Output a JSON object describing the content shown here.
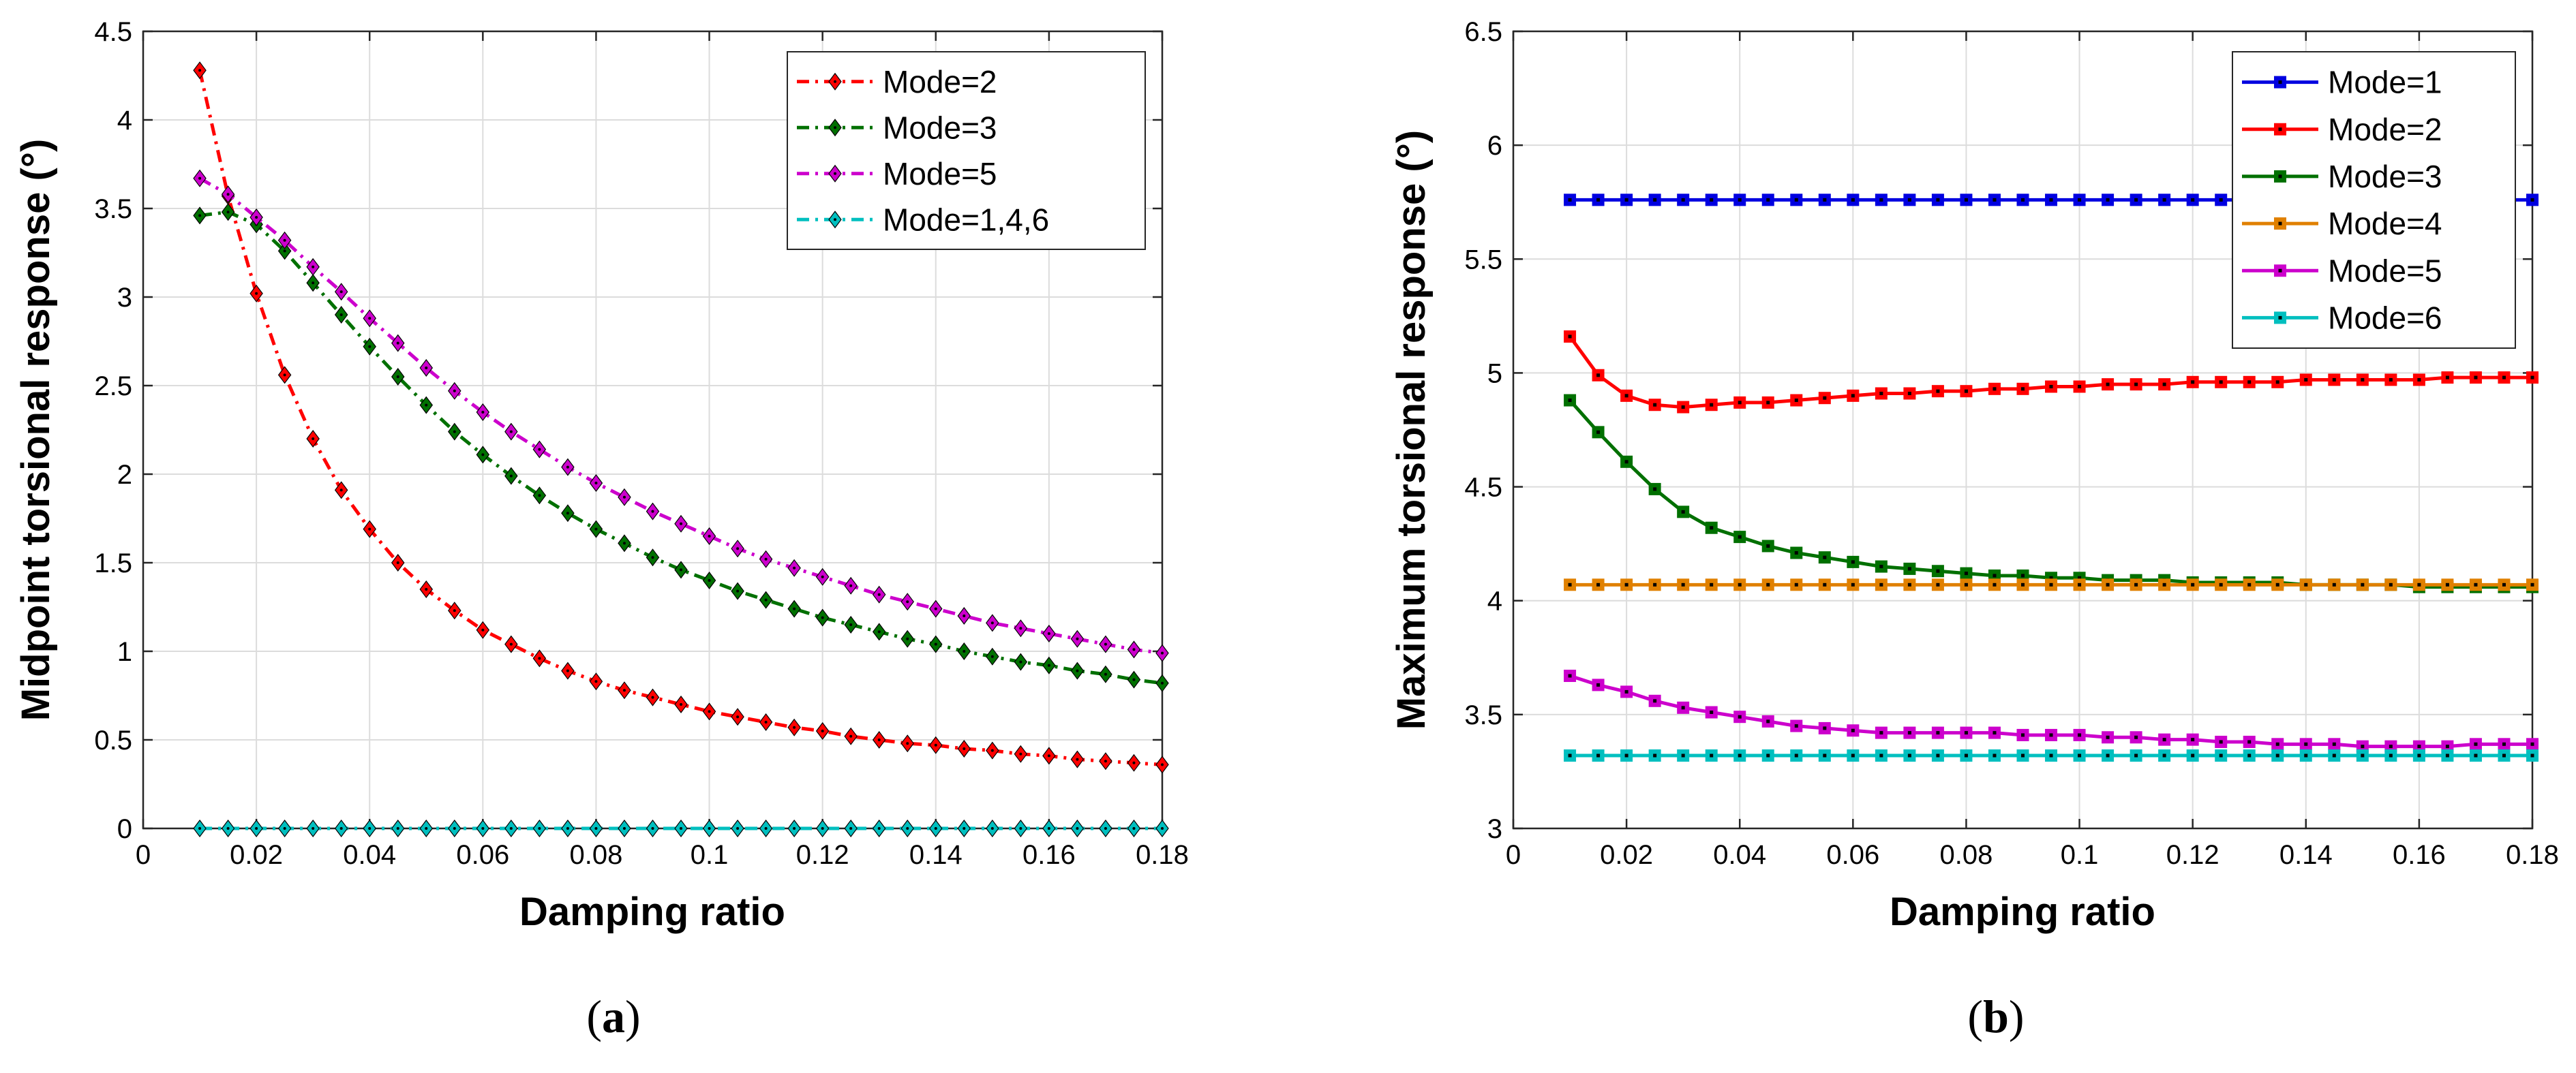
{
  "chart_data": [
    {
      "type": "line",
      "caption": "a",
      "xlabel": "Damping ratio",
      "ylabel": "Midpoint torsional response (°)",
      "xlim": [
        0,
        0.18
      ],
      "ylim": [
        0,
        4.5
      ],
      "xticks": [
        0,
        0.02,
        0.04,
        0.06,
        0.08,
        0.1,
        0.12,
        0.14,
        0.16,
        0.18
      ],
      "xtick_labels": [
        "0",
        "0.02",
        "0.04",
        "0.06",
        "0.08",
        "0.1",
        "0.12",
        "0.14",
        "0.16",
        "0.18"
      ],
      "yticks": [
        0,
        0.5,
        1,
        1.5,
        2,
        2.5,
        3,
        3.5,
        4,
        4.5
      ],
      "ytick_labels": [
        "0",
        "0.5",
        "1",
        "1.5",
        "2",
        "2.5",
        "3",
        "3.5",
        "4",
        "4.5"
      ],
      "grid": true,
      "legend_position": "top-right",
      "marker": "diamond",
      "line_style": "dash-dot",
      "x": [
        0.01,
        0.015,
        0.02,
        0.025,
        0.03,
        0.035,
        0.04,
        0.045,
        0.05,
        0.055,
        0.06,
        0.065,
        0.07,
        0.075,
        0.08,
        0.085,
        0.09,
        0.095,
        0.1,
        0.105,
        0.11,
        0.115,
        0.12,
        0.125,
        0.13,
        0.135,
        0.14,
        0.145,
        0.15,
        0.155,
        0.16,
        0.165,
        0.17,
        0.175,
        0.18
      ],
      "series": [
        {
          "name": "Mode=2",
          "color": "#ff0000",
          "values": [
            4.28,
            3.57,
            3.02,
            2.56,
            2.2,
            1.91,
            1.69,
            1.5,
            1.35,
            1.23,
            1.12,
            1.04,
            0.96,
            0.89,
            0.83,
            0.78,
            0.74,
            0.7,
            0.66,
            0.63,
            0.6,
            0.57,
            0.55,
            0.52,
            0.5,
            0.48,
            0.47,
            0.45,
            0.44,
            0.42,
            0.41,
            0.39,
            0.38,
            0.37,
            0.36
          ]
        },
        {
          "name": "Mode=3",
          "color": "#007000",
          "values": [
            3.46,
            3.48,
            3.41,
            3.26,
            3.08,
            2.9,
            2.72,
            2.55,
            2.39,
            2.24,
            2.11,
            1.99,
            1.88,
            1.78,
            1.69,
            1.61,
            1.53,
            1.46,
            1.4,
            1.34,
            1.29,
            1.24,
            1.19,
            1.15,
            1.11,
            1.07,
            1.04,
            1.0,
            0.97,
            0.94,
            0.92,
            0.89,
            0.87,
            0.84,
            0.82
          ]
        },
        {
          "name": "Mode=5",
          "color": "#cc00cc",
          "values": [
            3.67,
            3.58,
            3.45,
            3.32,
            3.17,
            3.03,
            2.88,
            2.74,
            2.6,
            2.47,
            2.35,
            2.24,
            2.14,
            2.04,
            1.95,
            1.87,
            1.79,
            1.72,
            1.65,
            1.58,
            1.52,
            1.47,
            1.42,
            1.37,
            1.32,
            1.28,
            1.24,
            1.2,
            1.16,
            1.13,
            1.1,
            1.07,
            1.04,
            1.01,
            0.99
          ]
        },
        {
          "name": "Mode=1,4,6",
          "color": "#00bfbf",
          "values": [
            0,
            0,
            0,
            0,
            0,
            0,
            0,
            0,
            0,
            0,
            0,
            0,
            0,
            0,
            0,
            0,
            0,
            0,
            0,
            0,
            0,
            0,
            0,
            0,
            0,
            0,
            0,
            0,
            0,
            0,
            0,
            0,
            0,
            0,
            0
          ]
        }
      ]
    },
    {
      "type": "line",
      "caption": "b",
      "xlabel": "Damping ratio",
      "ylabel": "Maximum torsional response (°)",
      "xlim": [
        0,
        0.18
      ],
      "ylim": [
        3,
        6.5
      ],
      "xticks": [
        0,
        0.02,
        0.04,
        0.06,
        0.08,
        0.1,
        0.12,
        0.14,
        0.16,
        0.18
      ],
      "xtick_labels": [
        "0",
        "0.02",
        "0.04",
        "0.06",
        "0.08",
        "0.1",
        "0.12",
        "0.14",
        "0.16",
        "0.18"
      ],
      "yticks": [
        3,
        3.5,
        4,
        4.5,
        5,
        5.5,
        6,
        6.5
      ],
      "ytick_labels": [
        "3",
        "3.5",
        "4",
        "4.5",
        "5",
        "5.5",
        "6",
        "6.5"
      ],
      "grid": true,
      "legend_position": "top-right",
      "marker": "square",
      "line_style": "solid",
      "x": [
        0.01,
        0.015,
        0.02,
        0.025,
        0.03,
        0.035,
        0.04,
        0.045,
        0.05,
        0.055,
        0.06,
        0.065,
        0.07,
        0.075,
        0.08,
        0.085,
        0.09,
        0.095,
        0.1,
        0.105,
        0.11,
        0.115,
        0.12,
        0.125,
        0.13,
        0.135,
        0.14,
        0.145,
        0.15,
        0.155,
        0.16,
        0.165,
        0.17,
        0.175,
        0.18
      ],
      "series": [
        {
          "name": "Mode=1",
          "color": "#0000e0",
          "values": [
            5.76,
            5.76,
            5.76,
            5.76,
            5.76,
            5.76,
            5.76,
            5.76,
            5.76,
            5.76,
            5.76,
            5.76,
            5.76,
            5.76,
            5.76,
            5.76,
            5.76,
            5.76,
            5.76,
            5.76,
            5.76,
            5.76,
            5.76,
            5.76,
            5.76,
            5.76,
            5.76,
            5.76,
            5.76,
            5.76,
            5.76,
            5.76,
            5.76,
            5.76,
            5.76
          ]
        },
        {
          "name": "Mode=2",
          "color": "#ff0000",
          "values": [
            5.16,
            4.99,
            4.9,
            4.86,
            4.85,
            4.86,
            4.87,
            4.87,
            4.88,
            4.89,
            4.9,
            4.91,
            4.91,
            4.92,
            4.92,
            4.93,
            4.93,
            4.94,
            4.94,
            4.95,
            4.95,
            4.95,
            4.96,
            4.96,
            4.96,
            4.96,
            4.97,
            4.97,
            4.97,
            4.97,
            4.97,
            4.98,
            4.98,
            4.98,
            4.98
          ]
        },
        {
          "name": "Mode=3",
          "color": "#007000",
          "values": [
            4.88,
            4.74,
            4.61,
            4.49,
            4.39,
            4.32,
            4.28,
            4.24,
            4.21,
            4.19,
            4.17,
            4.15,
            4.14,
            4.13,
            4.12,
            4.11,
            4.11,
            4.1,
            4.1,
            4.09,
            4.09,
            4.09,
            4.08,
            4.08,
            4.08,
            4.08,
            4.07,
            4.07,
            4.07,
            4.07,
            4.06,
            4.06,
            4.06,
            4.06,
            4.06
          ]
        },
        {
          "name": "Mode=4",
          "color": "#e08000",
          "values": [
            4.07,
            4.07,
            4.07,
            4.07,
            4.07,
            4.07,
            4.07,
            4.07,
            4.07,
            4.07,
            4.07,
            4.07,
            4.07,
            4.07,
            4.07,
            4.07,
            4.07,
            4.07,
            4.07,
            4.07,
            4.07,
            4.07,
            4.07,
            4.07,
            4.07,
            4.07,
            4.07,
            4.07,
            4.07,
            4.07,
            4.07,
            4.07,
            4.07,
            4.07,
            4.07
          ]
        },
        {
          "name": "Mode=5",
          "color": "#cc00cc",
          "values": [
            3.67,
            3.63,
            3.6,
            3.56,
            3.53,
            3.51,
            3.49,
            3.47,
            3.45,
            3.44,
            3.43,
            3.42,
            3.42,
            3.42,
            3.42,
            3.42,
            3.41,
            3.41,
            3.41,
            3.4,
            3.4,
            3.39,
            3.39,
            3.38,
            3.38,
            3.37,
            3.37,
            3.37,
            3.36,
            3.36,
            3.36,
            3.36,
            3.37,
            3.37,
            3.37
          ]
        },
        {
          "name": "Mode=6",
          "color": "#00bfbf",
          "values": [
            3.32,
            3.32,
            3.32,
            3.32,
            3.32,
            3.32,
            3.32,
            3.32,
            3.32,
            3.32,
            3.32,
            3.32,
            3.32,
            3.32,
            3.32,
            3.32,
            3.32,
            3.32,
            3.32,
            3.32,
            3.32,
            3.32,
            3.32,
            3.32,
            3.32,
            3.32,
            3.32,
            3.32,
            3.32,
            3.32,
            3.32,
            3.32,
            3.32,
            3.32,
            3.32
          ]
        }
      ]
    }
  ]
}
